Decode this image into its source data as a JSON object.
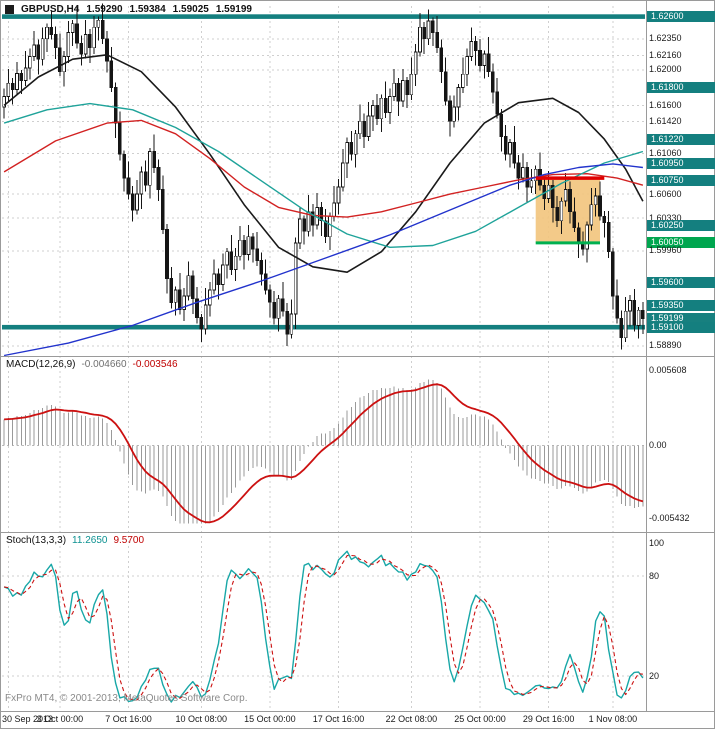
{
  "header": {
    "symbol_period": "GBPUSD,H4",
    "ohlc": {
      "open": "1.59290",
      "high": "1.59384",
      "low": "1.59025",
      "close": "1.59199"
    }
  },
  "watermark": "FxPro MT4, © 2001-2013, MetaQuotes Software Corp.",
  "colors": {
    "background": "#ffffff",
    "grid": "#cfcfcf",
    "border": "#9a9a9a",
    "bull": "#ffffff",
    "bear": "#151515"
  },
  "chart_data": [
    {
      "type": "candlestick",
      "title": "GBPUSD H4 main chart",
      "price_axis": {
        "min": 1.5882,
        "max": 1.6272,
        "labels": [
          {
            "text": "1.62600",
            "style": "band"
          },
          {
            "text": "1.62350",
            "style": "plain"
          },
          {
            "text": "1.62160",
            "style": "plain"
          },
          {
            "text": "1.62000",
            "style": "plain"
          },
          {
            "text": "1.61800",
            "style": "teal"
          },
          {
            "text": "1.61600",
            "style": "plain"
          },
          {
            "text": "1.61420",
            "style": "plain"
          },
          {
            "text": "1.61220",
            "style": "teal"
          },
          {
            "text": "1.61060",
            "style": "plain"
          },
          {
            "text": "1.60950",
            "style": "teal"
          },
          {
            "text": "1.60750",
            "style": "teal"
          },
          {
            "text": "1.60600",
            "style": "plain"
          },
          {
            "text": "1.60330",
            "style": "plain"
          },
          {
            "text": "1.60250",
            "style": "teal"
          },
          {
            "text": "1.60050",
            "style": "green"
          },
          {
            "text": "1.59960",
            "style": "plain"
          },
          {
            "text": "1.59600",
            "style": "teal"
          },
          {
            "text": "1.59350",
            "style": "teal"
          },
          {
            "text": "1.59199",
            "style": "current"
          },
          {
            "text": "1.59100",
            "style": "band"
          },
          {
            "text": "1.58890",
            "style": "plain"
          }
        ]
      },
      "time_axis": {
        "ticks": [
          {
            "text": "30 Sep 2013",
            "bar": 1
          },
          {
            "text": "3 Oct 00:00",
            "bar": 13
          },
          {
            "text": "7 Oct 16:00",
            "bar": 29
          },
          {
            "text": "10 Oct 08:00",
            "bar": 46
          },
          {
            "text": "15 Oct 00:00",
            "bar": 62
          },
          {
            "text": "17 Oct 16:00",
            "bar": 78
          },
          {
            "text": "22 Oct 08:00",
            "bar": 95
          },
          {
            "text": "25 Oct 00:00",
            "bar": 111
          },
          {
            "text": "29 Oct 16:00",
            "bar": 127
          },
          {
            "text": "1 Nov 08:00",
            "bar": 142
          }
        ]
      },
      "candles": {
        "open_first": 1.6158,
        "closes": [
          1.617,
          1.6185,
          1.6178,
          1.6196,
          1.6188,
          1.6202,
          1.6215,
          1.6228,
          1.6212,
          1.6235,
          1.6248,
          1.624,
          1.6225,
          1.6198,
          1.6215,
          1.6242,
          1.6252,
          1.623,
          1.6218,
          1.624,
          1.6225,
          1.6248,
          1.6256,
          1.6235,
          1.621,
          1.618,
          1.614,
          1.6105,
          1.6078,
          1.606,
          1.6042,
          1.606,
          1.6085,
          1.607,
          1.6108,
          1.609,
          1.6065,
          1.602,
          1.5965,
          1.5938,
          1.5952,
          1.593,
          1.5945,
          1.5968,
          1.5942,
          1.5921,
          1.5908,
          1.5935,
          1.5952,
          1.597,
          1.5958,
          1.598,
          1.5995,
          1.5975,
          1.599,
          1.6008,
          1.5992,
          1.6012,
          1.5998,
          1.5985,
          1.597,
          1.5952,
          1.5938,
          1.592,
          1.5942,
          1.5928,
          1.5902,
          1.5925,
          1.6005,
          1.6032,
          1.6018,
          1.604,
          1.6025,
          1.6045,
          1.603,
          1.6012,
          1.6035,
          1.605,
          1.6068,
          1.6095,
          1.6118,
          1.6105,
          1.6128,
          1.6142,
          1.6125,
          1.6148,
          1.616,
          1.6145,
          1.6168,
          1.6152,
          1.617,
          1.6185,
          1.6165,
          1.6188,
          1.6172,
          1.6195,
          1.622,
          1.6248,
          1.6235,
          1.6255,
          1.6242,
          1.6225,
          1.6198,
          1.6165,
          1.6142,
          1.6158,
          1.618,
          1.6195,
          1.6215,
          1.6232,
          1.6222,
          1.6205,
          1.6218,
          1.6198,
          1.6175,
          1.615,
          1.6125,
          1.6105,
          1.6118,
          1.6095,
          1.6078,
          1.609,
          1.6068,
          1.6075,
          1.6088,
          1.607,
          1.6055,
          1.607,
          1.6045,
          1.603,
          1.6052,
          1.6065,
          1.604,
          1.6022,
          1.6005,
          1.5998,
          1.6025,
          1.6048,
          1.6058,
          1.6035,
          1.6028,
          1.5995,
          1.5945,
          1.592,
          1.5898,
          1.5928,
          1.594,
          1.5912,
          1.5929,
          1.59199
        ],
        "wick_high": [
          0.0009,
          0.0016,
          0.0006,
          0.0013,
          0.0004,
          0.0019
        ],
        "wick_low": [
          0.0013,
          0.0005,
          0.0017,
          0.0007,
          0.0015,
          0.0006
        ],
        "last_ohlc": [
          1.5929,
          1.59384,
          1.59025,
          1.59199
        ]
      },
      "overlays": {
        "bands": [
          {
            "price": 1.626,
            "color": "#147f7f"
          },
          {
            "price": 1.591,
            "color": "#147f7f"
          }
        ],
        "segments": [
          {
            "name": "resistance-line",
            "price": 1.6078,
            "from": 124,
            "to": 140,
            "color": "#e00000",
            "width": 3.5
          },
          {
            "name": "support-line",
            "price": 1.6005,
            "from": 124,
            "to": 139,
            "color": "#00b050",
            "width": 3
          }
        ],
        "box": {
          "top": 1.6078,
          "bottom": 1.6005,
          "from": 124,
          "to": 139,
          "fill": "rgba(242,196,124,0.9)"
        },
        "moving_averages": [
          {
            "name": "ma-black",
            "color": "#1a1a1a",
            "width": 1.6,
            "points": [
              [
                0,
                1.616
              ],
              [
                8,
                1.6192
              ],
              [
                16,
                1.6212
              ],
              [
                24,
                1.6217
              ],
              [
                32,
                1.6198
              ],
              [
                40,
                1.6158
              ],
              [
                48,
                1.6105
              ],
              [
                56,
                1.6048
              ],
              [
                64,
                1.6
              ],
              [
                72,
                1.5978
              ],
              [
                80,
                1.5972
              ],
              [
                88,
                1.5995
              ],
              [
                96,
                1.604
              ],
              [
                104,
                1.6095
              ],
              [
                112,
                1.614
              ],
              [
                120,
                1.6163
              ],
              [
                128,
                1.6168
              ],
              [
                134,
                1.6152
              ],
              [
                140,
                1.6122
              ],
              [
                145,
                1.6088
              ],
              [
                149,
                1.6052
              ]
            ]
          },
          {
            "name": "ma-red",
            "color": "#d22222",
            "width": 1.4,
            "points": [
              [
                0,
                1.6085
              ],
              [
                12,
                1.612
              ],
              [
                24,
                1.614
              ],
              [
                32,
                1.6143
              ],
              [
                40,
                1.6128
              ],
              [
                48,
                1.61
              ],
              [
                56,
                1.6068
              ],
              [
                64,
                1.6045
              ],
              [
                72,
                1.6036
              ],
              [
                80,
                1.6034
              ],
              [
                88,
                1.604
              ],
              [
                96,
                1.605
              ],
              [
                104,
                1.606
              ],
              [
                112,
                1.6068
              ],
              [
                120,
                1.6076
              ],
              [
                128,
                1.6082
              ],
              [
                136,
                1.6083
              ],
              [
                143,
                1.6078
              ],
              [
                149,
                1.607
              ]
            ]
          },
          {
            "name": "ma-teal",
            "color": "#1fa39a",
            "width": 1.4,
            "points": [
              [
                0,
                1.614
              ],
              [
                10,
                1.6155
              ],
              [
                20,
                1.6162
              ],
              [
                30,
                1.6155
              ],
              [
                40,
                1.6135
              ],
              [
                50,
                1.6108
              ],
              [
                60,
                1.6075
              ],
              [
                70,
                1.6042
              ],
              [
                80,
                1.6015
              ],
              [
                90,
                1.6
              ],
              [
                100,
                1.6002
              ],
              [
                110,
                1.6018
              ],
              [
                120,
                1.6045
              ],
              [
                130,
                1.6072
              ],
              [
                140,
                1.6095
              ],
              [
                149,
                1.6108
              ]
            ]
          },
          {
            "name": "ma-blue",
            "color": "#2233cc",
            "width": 1.4,
            "points": [
              [
                0,
                1.5878
              ],
              [
                15,
                1.5892
              ],
              [
                30,
                1.5912
              ],
              [
                45,
                1.5938
              ],
              [
                60,
                1.5962
              ],
              [
                75,
                1.5988
              ],
              [
                90,
                1.6014
              ],
              [
                100,
                1.6034
              ],
              [
                110,
                1.6054
              ],
              [
                118,
                1.607
              ],
              [
                126,
                1.6082
              ],
              [
                134,
                1.609
              ],
              [
                142,
                1.6094
              ],
              [
                149,
                1.609
              ]
            ]
          }
        ]
      }
    },
    {
      "type": "macd",
      "title": "MACD(12,26,9)",
      "params": [
        12,
        26,
        9
      ],
      "value_main": "-0.004660",
      "value_signal": "-0.003546",
      "axis_labels": [
        "0.005608",
        "0.00",
        "-0.005432"
      ],
      "y_max": 0.0062,
      "y_min": -0.006,
      "histogram_color": "#9a9a9a",
      "signal_color": "#cc1111",
      "warmup": {
        "bars": 40,
        "drop": 0.012
      }
    },
    {
      "type": "stochastic",
      "title": "Stoch(13,3,3)",
      "params": [
        13,
        3,
        3
      ],
      "value_main": "11.2650",
      "value_signal": "9.5700",
      "axis_labels": [
        "100",
        "80",
        "20"
      ],
      "grid_levels": [
        80,
        20
      ],
      "y_min": 0,
      "y_max": 100,
      "main_color": "#18a7a7",
      "signal_color": "#cc1111"
    }
  ]
}
